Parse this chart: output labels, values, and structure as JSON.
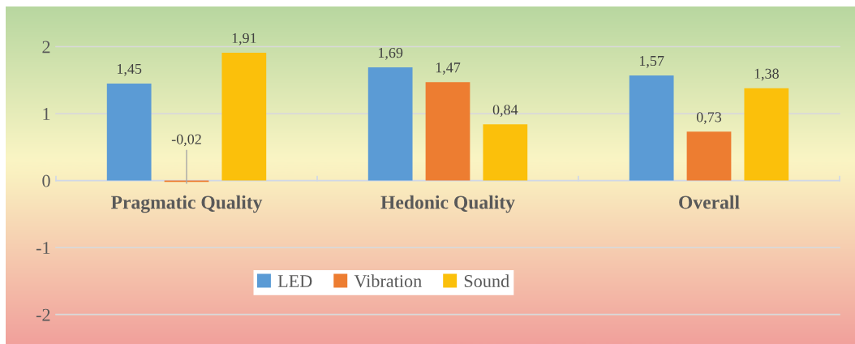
{
  "chart_data": {
    "type": "bar",
    "categories": [
      "Pragmatic Quality",
      "Hedonic Quality",
      "Overall"
    ],
    "series": [
      {
        "name": "LED",
        "color": "#5b9bd5",
        "values": [
          1.45,
          1.69,
          1.57
        ],
        "value_labels": [
          "1,45",
          "1,69",
          "1,57"
        ]
      },
      {
        "name": "Vibration",
        "color": "#ed7d31",
        "values": [
          -0.02,
          1.47,
          0.73
        ],
        "value_labels": [
          "-0,02",
          "1,47",
          "0,73"
        ]
      },
      {
        "name": "Sound",
        "color": "#fbc00b",
        "values": [
          1.91,
          0.84,
          1.38
        ],
        "value_labels": [
          "1,91",
          "0,84",
          "1,38"
        ]
      }
    ],
    "ylim": [
      -2.44,
      2.6
    ],
    "yticks": [
      {
        "value": -2,
        "label": "-2"
      },
      {
        "value": -1,
        "label": "-1"
      },
      0,
      1,
      2
    ],
    "grid": "y",
    "legend": "bottom"
  }
}
